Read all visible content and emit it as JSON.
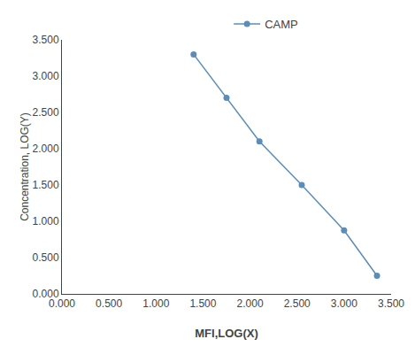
{
  "chart_data": {
    "type": "line",
    "xlabel": "MFI,LOG(X)",
    "ylabel": "Concentration, LOG(Y)",
    "x": [
      1.4,
      1.75,
      2.1,
      2.55,
      3.0,
      3.35
    ],
    "series": [
      {
        "name": "CAMP",
        "color": "#5b8db8",
        "marker": "circle",
        "line_style": "solid",
        "values": [
          3.3,
          2.7,
          2.1,
          1.5,
          0.875,
          0.25
        ]
      }
    ],
    "xlim": [
      0.0,
      3.5
    ],
    "ylim": [
      0.0,
      3.5
    ],
    "xticks": [
      {
        "value": 0.0,
        "label": "0.000"
      },
      {
        "value": 0.5,
        "label": "0.500"
      },
      {
        "value": 1.0,
        "label": "1.000"
      },
      {
        "value": 1.5,
        "label": "1.500"
      },
      {
        "value": 2.0,
        "label": "2.000"
      },
      {
        "value": 2.5,
        "label": "2.500"
      },
      {
        "value": 3.0,
        "label": "3.000"
      },
      {
        "value": 3.5,
        "label": "3.500"
      }
    ],
    "yticks": [
      {
        "value": 0.0,
        "label": "0.000"
      },
      {
        "value": 0.5,
        "label": "0.500"
      },
      {
        "value": 1.0,
        "label": "1.000"
      },
      {
        "value": 1.5,
        "label": "1.500"
      },
      {
        "value": 2.0,
        "label": "2.000"
      },
      {
        "value": 2.5,
        "label": "2.500"
      },
      {
        "value": 3.0,
        "label": "3.000"
      },
      {
        "value": 3.5,
        "label": "3.500"
      }
    ],
    "grid": false,
    "legend": "top"
  }
}
